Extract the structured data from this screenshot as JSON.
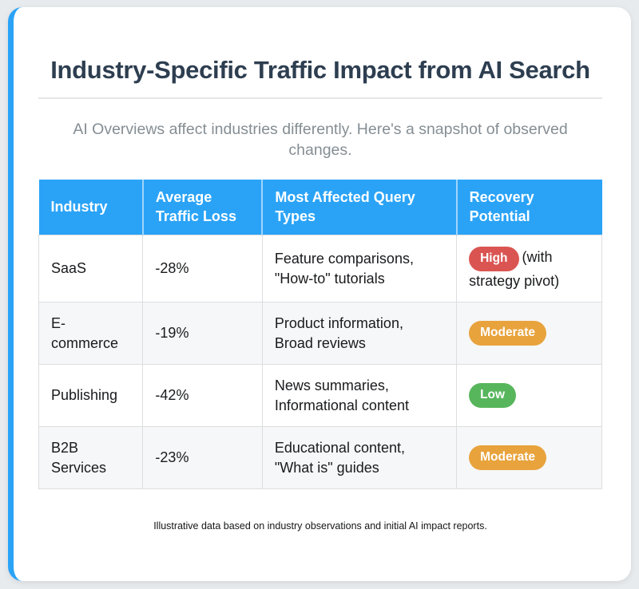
{
  "colors": {
    "page_background": "#e8ebee",
    "card_background": "#ffffff",
    "accent_blue": "#2aa3f7",
    "table_header_bg": "#2aa3f7",
    "table_header_text": "#ffffff",
    "row_stripe": "#f6f7f8",
    "cell_border": "#dcdedf",
    "title_color": "#2d3e50",
    "subtitle_color": "#858e94",
    "badge_high": "#da5552",
    "badge_moderate": "#e8a33d",
    "badge_low": "#57b65c"
  },
  "header": {
    "title": "Industry-Specific Traffic Impact from AI Search",
    "subtitle": "AI Overviews affect industries differently. Here's a snapshot of observed changes."
  },
  "table": {
    "columns": [
      "Industry",
      [
        "Average",
        "Traffic Loss"
      ],
      [
        "Most Affected Query",
        "Types"
      ],
      [
        "Recovery",
        "Potential"
      ]
    ],
    "rows": [
      {
        "industry": "SaaS",
        "traffic_loss": "-28%",
        "query_lines": [
          "Feature comparisons,",
          "\"How-to\" tutorials"
        ],
        "badge": {
          "label": "High",
          "color": "#da5552"
        },
        "suffix": "(with\nstrategy pivot)"
      },
      {
        "industry": [
          "E-",
          "commerce"
        ],
        "traffic_loss": "-19%",
        "query_lines": [
          "Product information,",
          "Broad reviews"
        ],
        "badge": {
          "label": "Moderate",
          "color": "#e8a33d"
        },
        "suffix": ""
      },
      {
        "industry": "Publishing",
        "traffic_loss": "-42%",
        "query_lines": [
          "News summaries,",
          "Informational content"
        ],
        "badge": {
          "label": "Low",
          "color": "#57b65c"
        },
        "suffix": ""
      },
      {
        "industry": [
          "B2B",
          "Services"
        ],
        "traffic_loss": "-23%",
        "query_lines": [
          "Educational content,",
          "\"What is\" guides"
        ],
        "badge": {
          "label": "Moderate",
          "color": "#e8a33d"
        },
        "suffix": ""
      }
    ]
  },
  "footer": {
    "note": "Illustrative data based on industry observations and initial AI impact reports."
  },
  "chart_data": {
    "type": "table",
    "title": "Industry-Specific Traffic Impact from AI Search",
    "subtitle": "AI Overviews affect industries differently. Here's a snapshot of observed changes.",
    "columns": [
      "Industry",
      "Average Traffic Loss",
      "Most Affected Query Types",
      "Recovery Potential"
    ],
    "rows": [
      [
        "SaaS",
        "-28%",
        "Feature comparisons, \"How-to\" tutorials",
        "High (with strategy pivot)"
      ],
      [
        "E-commerce",
        "-19%",
        "Product information, Broad reviews",
        "Moderate"
      ],
      [
        "Publishing",
        "-42%",
        "News summaries, Informational content",
        "Low"
      ],
      [
        "B2B Services",
        "-23%",
        "Educational content, \"What is\" guides",
        "Moderate"
      ]
    ],
    "traffic_loss_values_pct": [
      -28,
      -19,
      -42,
      -23
    ],
    "recovery_levels": [
      "High",
      "Moderate",
      "Low",
      "Moderate"
    ],
    "footnote": "Illustrative data based on industry observations and initial AI impact reports."
  }
}
